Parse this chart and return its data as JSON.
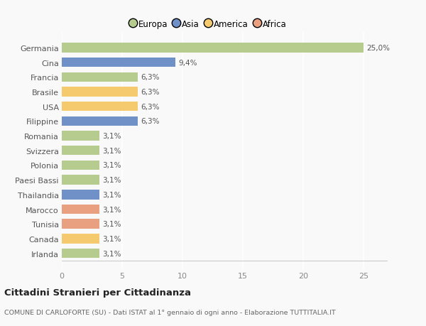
{
  "categories": [
    "Irlanda",
    "Canada",
    "Tunisia",
    "Marocco",
    "Thailandia",
    "Paesi Bassi",
    "Polonia",
    "Svizzera",
    "Romania",
    "Filippine",
    "USA",
    "Brasile",
    "Francia",
    "Cina",
    "Germania"
  ],
  "values": [
    3.1,
    3.1,
    3.1,
    3.1,
    3.1,
    3.1,
    3.1,
    3.1,
    3.1,
    6.3,
    6.3,
    6.3,
    6.3,
    9.4,
    25.0
  ],
  "colors": [
    "#b5cc8e",
    "#f5c96e",
    "#e8a080",
    "#e8a080",
    "#7090c8",
    "#b5cc8e",
    "#b5cc8e",
    "#b5cc8e",
    "#b5cc8e",
    "#7090c8",
    "#f5c96e",
    "#f5c96e",
    "#b5cc8e",
    "#7090c8",
    "#b5cc8e"
  ],
  "labels": [
    "3,1%",
    "3,1%",
    "3,1%",
    "3,1%",
    "3,1%",
    "3,1%",
    "3,1%",
    "3,1%",
    "3,1%",
    "6,3%",
    "6,3%",
    "6,3%",
    "6,3%",
    "9,4%",
    "25,0%"
  ],
  "legend": [
    {
      "label": "Europa",
      "color": "#b5cc8e"
    },
    {
      "label": "Asia",
      "color": "#7090c8"
    },
    {
      "label": "America",
      "color": "#f5c96e"
    },
    {
      "label": "Africa",
      "color": "#e8a080"
    }
  ],
  "xlim": [
    0,
    27
  ],
  "xticks": [
    0,
    5,
    10,
    15,
    20,
    25
  ],
  "title": "Cittadini Stranieri per Cittadinanza",
  "subtitle": "COMUNE DI CARLOFORTE (SU) - Dati ISTAT al 1° gennaio di ogni anno - Elaborazione TUTTITALIA.IT",
  "background_color": "#f9f9f9",
  "grid_color": "#ffffff",
  "bar_height": 0.65
}
